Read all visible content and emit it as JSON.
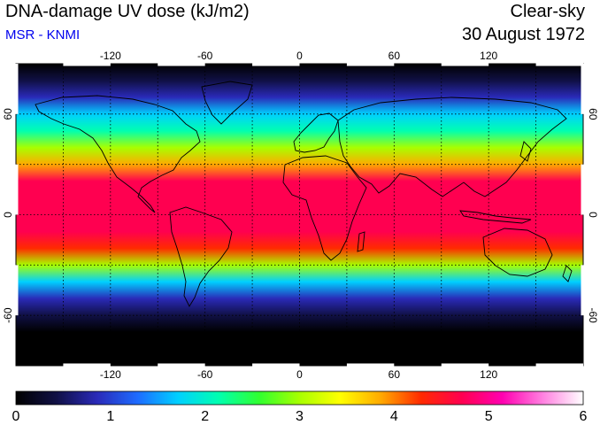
{
  "header": {
    "title": "DNA-damage UV dose (kJ/m2)",
    "subtitle": "MSR - KNMI",
    "sky_condition": "Clear-sky",
    "date": "30 August 1972"
  },
  "colors": {
    "subtitle": "#0000ee",
    "colormap": [
      "#000000",
      "#101045",
      "#2a2ab8",
      "#1e6bff",
      "#00d0ff",
      "#00ffb0",
      "#30ff30",
      "#a8ff00",
      "#ffff00",
      "#ffaa00",
      "#ff2a00",
      "#ff0050",
      "#ff00b0",
      "#ff80e0",
      "#ffffff"
    ]
  },
  "map": {
    "projection": "equirectangular",
    "lon_range": [
      -180,
      180
    ],
    "lat_range": [
      -90,
      90
    ],
    "lon_gridlines": [
      -150,
      -120,
      -90,
      -60,
      -30,
      0,
      30,
      60,
      90,
      120,
      150
    ],
    "lat_gridlines": [
      -60,
      -30,
      0,
      30,
      60
    ],
    "lon_tick_labels": [
      "-120",
      "-60",
      "0",
      "60",
      "120"
    ],
    "lon_tick_values": [
      -120,
      -60,
      0,
      60,
      120
    ],
    "lat_tick_labels": [
      "60",
      "0",
      "-60"
    ],
    "lat_tick_values": [
      60,
      0,
      -60
    ],
    "coastlines": true,
    "grid": "dotted"
  },
  "chart_data": {
    "type": "heatmap",
    "title": "DNA-damage UV dose (kJ/m2)",
    "x_range": [
      -180,
      180
    ],
    "y_range": [
      -90,
      90
    ],
    "zonal_profile": {
      "lat": [
        -90,
        -70,
        -60,
        -50,
        -40,
        -30,
        -20,
        -10,
        0,
        10,
        20,
        30,
        40,
        50,
        60,
        70,
        80,
        90
      ],
      "value": [
        0.0,
        0.15,
        0.4,
        1.0,
        1.7,
        3.0,
        4.1,
        4.6,
        4.7,
        4.7,
        4.5,
        3.7,
        2.9,
        2.3,
        1.6,
        1.0,
        0.5,
        0.2
      ]
    },
    "colorbar": {
      "min": 0,
      "max": 6,
      "tick_labels": [
        "0",
        "1",
        "2",
        "3",
        "4",
        "5",
        "6"
      ]
    }
  }
}
